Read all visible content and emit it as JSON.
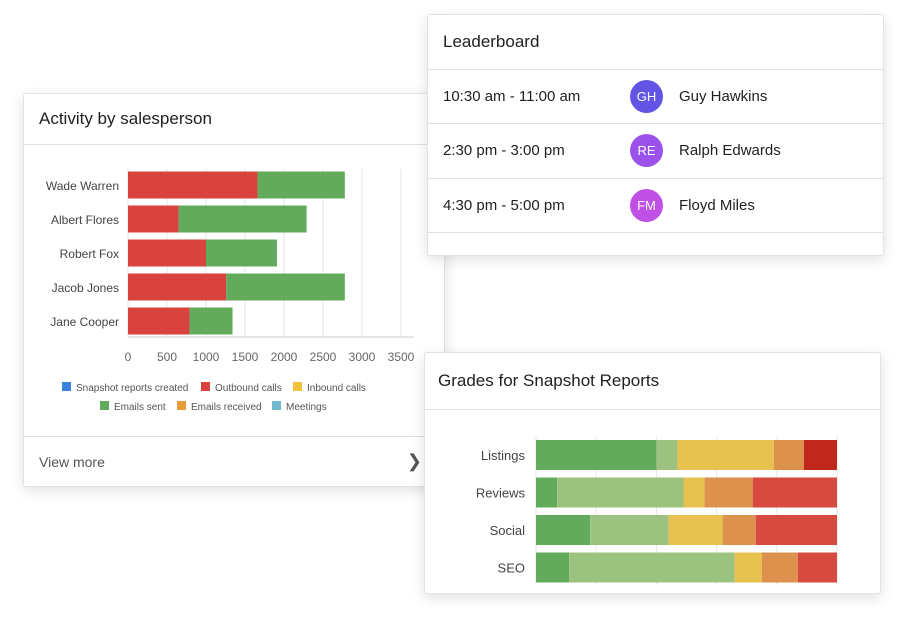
{
  "activity": {
    "title": "Activity by salesperson",
    "view_more": "View more",
    "chart_data": {
      "type": "bar",
      "orientation": "horizontal",
      "stacked": true,
      "categories": [
        "Wade Warren",
        "Albert Flores",
        "Robert Fox",
        "Jacob Jones",
        "Jane Cooper"
      ],
      "xlim": [
        0,
        3500
      ],
      "xticks": [
        "0",
        "500",
        "1000",
        "1500",
        "2000",
        "2500",
        "3000",
        "3500"
      ],
      "grid": true,
      "legend_placement": "bottom",
      "legend": [
        {
          "name": "Snapshot reports created",
          "color": "#3b82dc"
        },
        {
          "name": "Outbound calls",
          "color": "#d9433f"
        },
        {
          "name": "Inbound calls",
          "color": "#f2c13c"
        },
        {
          "name": "Emails sent",
          "color": "#63ab5c"
        },
        {
          "name": "Emails received",
          "color": "#eb9b38"
        },
        {
          "name": "Meetings",
          "color": "#72b8cc"
        }
      ],
      "series": [
        {
          "name": "Outbound calls",
          "color": "#d9433f",
          "values": [
            1660,
            650,
            1000,
            1260,
            790
          ]
        },
        {
          "name": "Emails sent",
          "color": "#63ab5c",
          "values": [
            1120,
            1640,
            910,
            1520,
            550
          ]
        }
      ]
    }
  },
  "leaderboard": {
    "title": "Leaderboard",
    "rows": [
      {
        "time": "10:30 am - 11:00 am",
        "initials": "GH",
        "name": "Guy Hawkins",
        "color": "#6454e6"
      },
      {
        "time": "2:30 pm - 3:00 pm",
        "initials": "RE",
        "name": "Ralph Edwards",
        "color": "#9a52ea"
      },
      {
        "time": "4:30 pm - 5:00 pm",
        "initials": "FM",
        "name": "Floyd Miles",
        "color": "#c04fe6"
      }
    ]
  },
  "grades": {
    "title": "Grades for Snapshot Reports",
    "chart_data": {
      "type": "bar",
      "orientation": "horizontal",
      "stacked": true,
      "normalized_percent": true,
      "categories": [
        "Listings",
        "Reviews",
        "Social",
        "SEO"
      ],
      "grid": true,
      "series": [
        {
          "color": "#63ab5c",
          "values": [
            40,
            7,
            18,
            11
          ]
        },
        {
          "color": "#9cc27f",
          "values": [
            7,
            42,
            26,
            55
          ]
        },
        {
          "color": "#e8c250",
          "values": [
            32,
            7,
            18,
            9
          ]
        },
        {
          "color": "#dc914c",
          "values": [
            10,
            16,
            11,
            12
          ]
        },
        {
          "color": "#d64a40",
          "values": [
            11,
            28,
            27,
            13
          ]
        }
      ],
      "listings_last_color": "#c0281c"
    }
  }
}
